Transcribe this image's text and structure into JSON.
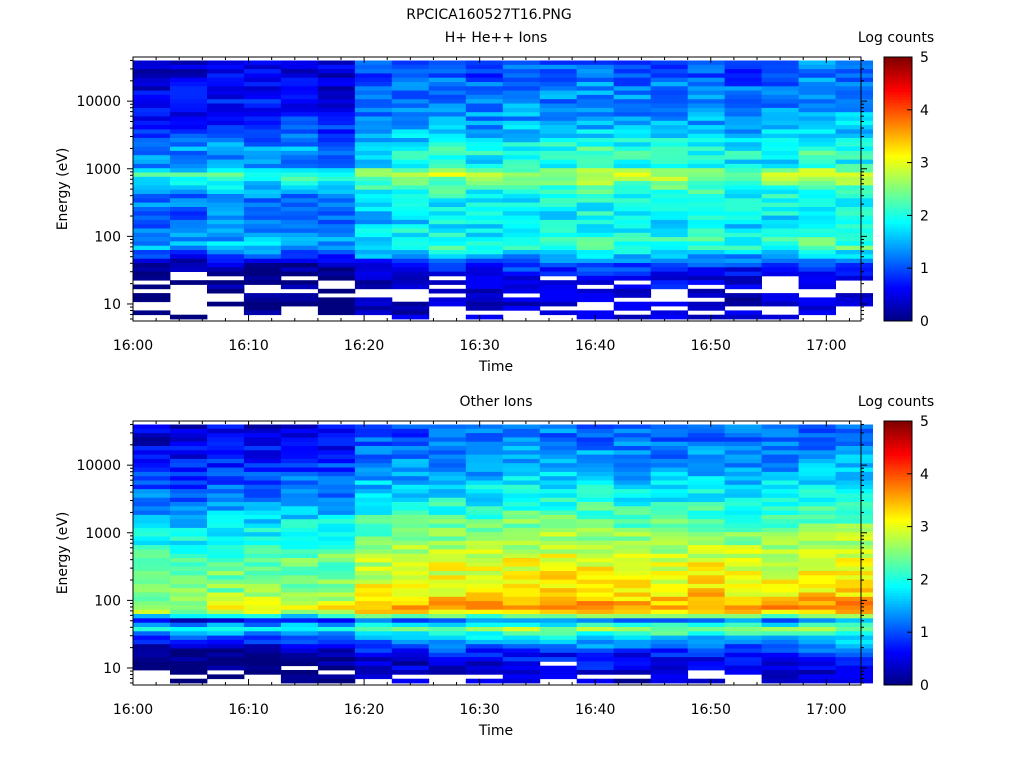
{
  "figure_title": "RPCICA160527T16.PNG",
  "colormap": [
    "#00007f",
    "#0000ff",
    "#007fff",
    "#00ffff",
    "#7fff7f",
    "#ffff00",
    "#ff7f00",
    "#ff0000",
    "#7f0000"
  ],
  "chart_data": [
    {
      "type": "heatmap",
      "title": "H+ He++ Ions",
      "xlabel": "Time",
      "ylabel": "Energy (eV)",
      "x_ticks": [
        "16:00",
        "16:10",
        "16:20",
        "16:30",
        "16:40",
        "16:50",
        "17:00"
      ],
      "x_range_minutes": [
        0,
        63
      ],
      "y_scale": "log",
      "y_ticks": [
        10,
        100,
        1000,
        10000
      ],
      "y_tick_labels": [
        "10",
        "100",
        "1000",
        "10000"
      ],
      "y_range": [
        5.6,
        45000
      ],
      "colorbar": {
        "label": "Log counts",
        "range": [
          0,
          5
        ],
        "ticks": [
          "0",
          "1",
          "2",
          "3",
          "4",
          "5"
        ]
      },
      "time_bins_minutes": [
        1.6,
        4.8,
        8.0,
        11.2,
        14.4,
        17.6,
        20.8,
        24.0,
        27.2,
        30.4,
        33.6,
        36.8,
        40.0,
        43.2,
        46.4,
        49.6,
        52.8,
        56.0,
        59.2,
        62.4
      ],
      "energy_band_levels": [
        {
          "energy_eV": 25000,
          "level": 0.8
        },
        {
          "energy_eV": 10000,
          "level": 1.0
        },
        {
          "energy_eV": 4000,
          "level": 1.2
        },
        {
          "energy_eV": 1800,
          "level": 1.8
        },
        {
          "energy_eV": 1200,
          "level": 1.5
        },
        {
          "energy_eV": 850,
          "level": 2.5
        },
        {
          "energy_eV": 400,
          "level": 1.6
        },
        {
          "energy_eV": 150,
          "level": 1.5
        },
        {
          "energy_eV": 70,
          "level": 1.9
        },
        {
          "energy_eV": 40,
          "level": 0.7
        },
        {
          "energy_eV": 25,
          "level": 0.3
        },
        {
          "energy_eV": 10,
          "level": 0.2
        }
      ],
      "time_trend": [
        -0.4,
        -0.4,
        -0.3,
        -0.3,
        -0.3,
        -0.4,
        0.1,
        0.2,
        0.3,
        0.2,
        0.3,
        0.3,
        0.4,
        0.3,
        0.3,
        0.3,
        0.2,
        0.3,
        0.4,
        0.4
      ],
      "low_energy_cutoff_eV": [
        22,
        32,
        32,
        22,
        26,
        26,
        18,
        18,
        28,
        24,
        24,
        28,
        28,
        22,
        18,
        20,
        18,
        28,
        28,
        28
      ]
    },
    {
      "type": "heatmap",
      "title": "Other Ions",
      "xlabel": "Time",
      "ylabel": "Energy (eV)",
      "x_ticks": [
        "16:00",
        "16:10",
        "16:20",
        "16:30",
        "16:40",
        "16:50",
        "17:00"
      ],
      "x_range_minutes": [
        0,
        63
      ],
      "y_scale": "log",
      "y_ticks": [
        10,
        100,
        1000,
        10000
      ],
      "y_tick_labels": [
        "10",
        "100",
        "1000",
        "10000"
      ],
      "y_range": [
        5.6,
        45000
      ],
      "colorbar": {
        "label": "Log counts",
        "range": [
          0,
          5
        ],
        "ticks": [
          "0",
          "1",
          "2",
          "3",
          "4",
          "5"
        ]
      },
      "time_bins_minutes": [
        1.6,
        4.8,
        8.0,
        11.2,
        14.4,
        17.6,
        20.8,
        24.0,
        27.2,
        30.4,
        33.6,
        36.8,
        40.0,
        43.2,
        46.4,
        49.6,
        52.8,
        56.0,
        59.2,
        62.4
      ],
      "energy_band_levels": [
        {
          "energy_eV": 25000,
          "level": 0.9
        },
        {
          "energy_eV": 10000,
          "level": 1.2
        },
        {
          "energy_eV": 3000,
          "level": 1.7
        },
        {
          "energy_eV": 1000,
          "level": 2.3
        },
        {
          "energy_eV": 400,
          "level": 2.7
        },
        {
          "energy_eV": 150,
          "level": 2.9
        },
        {
          "energy_eV": 70,
          "level": 3.4
        },
        {
          "energy_eV": 50,
          "level": 1.0
        },
        {
          "energy_eV": 38,
          "level": 2.4
        },
        {
          "energy_eV": 28,
          "level": 1.4
        },
        {
          "energy_eV": 15,
          "level": 0.4
        },
        {
          "energy_eV": 8,
          "level": 0.2
        }
      ],
      "time_trend": [
        -0.5,
        -0.5,
        -0.4,
        -0.4,
        -0.3,
        -0.3,
        0.1,
        0.1,
        0.2,
        0.2,
        0.3,
        0.3,
        0.3,
        0.2,
        0.2,
        0.3,
        0.2,
        0.2,
        0.3,
        0.3
      ],
      "low_energy_cutoff_eV": [
        9,
        9,
        9,
        9,
        12,
        9,
        9,
        9,
        9,
        9,
        12,
        12,
        9,
        9,
        9,
        9,
        9,
        9,
        9,
        9
      ]
    }
  ]
}
